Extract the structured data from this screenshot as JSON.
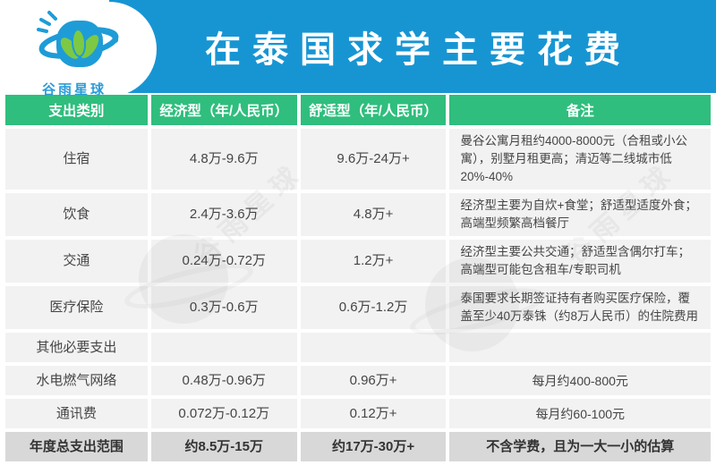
{
  "logo": {
    "brand": "谷雨星球"
  },
  "banner": {
    "title": "在泰国求学主要花费"
  },
  "watermark": {
    "text": "谷雨星球"
  },
  "colors": {
    "banner_blue": "#1795D3",
    "header_green": "#2FBE7D",
    "row_bg": "#F2F2F2",
    "summary_row_bg": "#D8D8D8",
    "logo_blue": "#2B9CD8",
    "leaf_green": "#7DC944"
  },
  "chart_data": {
    "type": "table",
    "title": "在泰国求学主要花费",
    "columns": [
      "支出类别",
      "经济型（年/人民币）",
      "舒适型（年/人民币）",
      "备注"
    ],
    "rows": [
      [
        "住宿",
        "4.8万-9.6万",
        "9.6万-24万+",
        "曼谷公寓月租约4000-8000元（合租或小公寓），别墅月租更高；清迈等二线城市低20%-40%"
      ],
      [
        "饮食",
        "2.4万-3.6万",
        "4.8万+",
        "经济型主要为自炊+食堂；舒适型适度外食；高端型频繁高档餐厅"
      ],
      [
        "交通",
        "0.24万-0.72万",
        "1.2万+",
        "经济型主要公共交通；舒适型含偶尔打车；高端型可能包含租车/专职司机"
      ],
      [
        "医疗保险",
        "0.3万-0.6万",
        "0.6万-1.2万",
        "泰国要求长期签证持有者购买医疗保险，覆盖至少40万泰铢（约8万人民币）的住院费用"
      ],
      [
        "其他必要支出",
        "",
        "",
        ""
      ],
      [
        "水电燃气网络",
        "0.48万-0.96万",
        "0.96万+",
        "每月约400-800元"
      ],
      [
        "通讯费",
        "0.072万-0.12万",
        "0.12万+",
        "每月约60-100元"
      ]
    ],
    "summary_row": [
      "年度总支出范围",
      "约8.5万-15万",
      "约17万-30万+",
      "不含学费，且为一大一小的估算"
    ]
  }
}
